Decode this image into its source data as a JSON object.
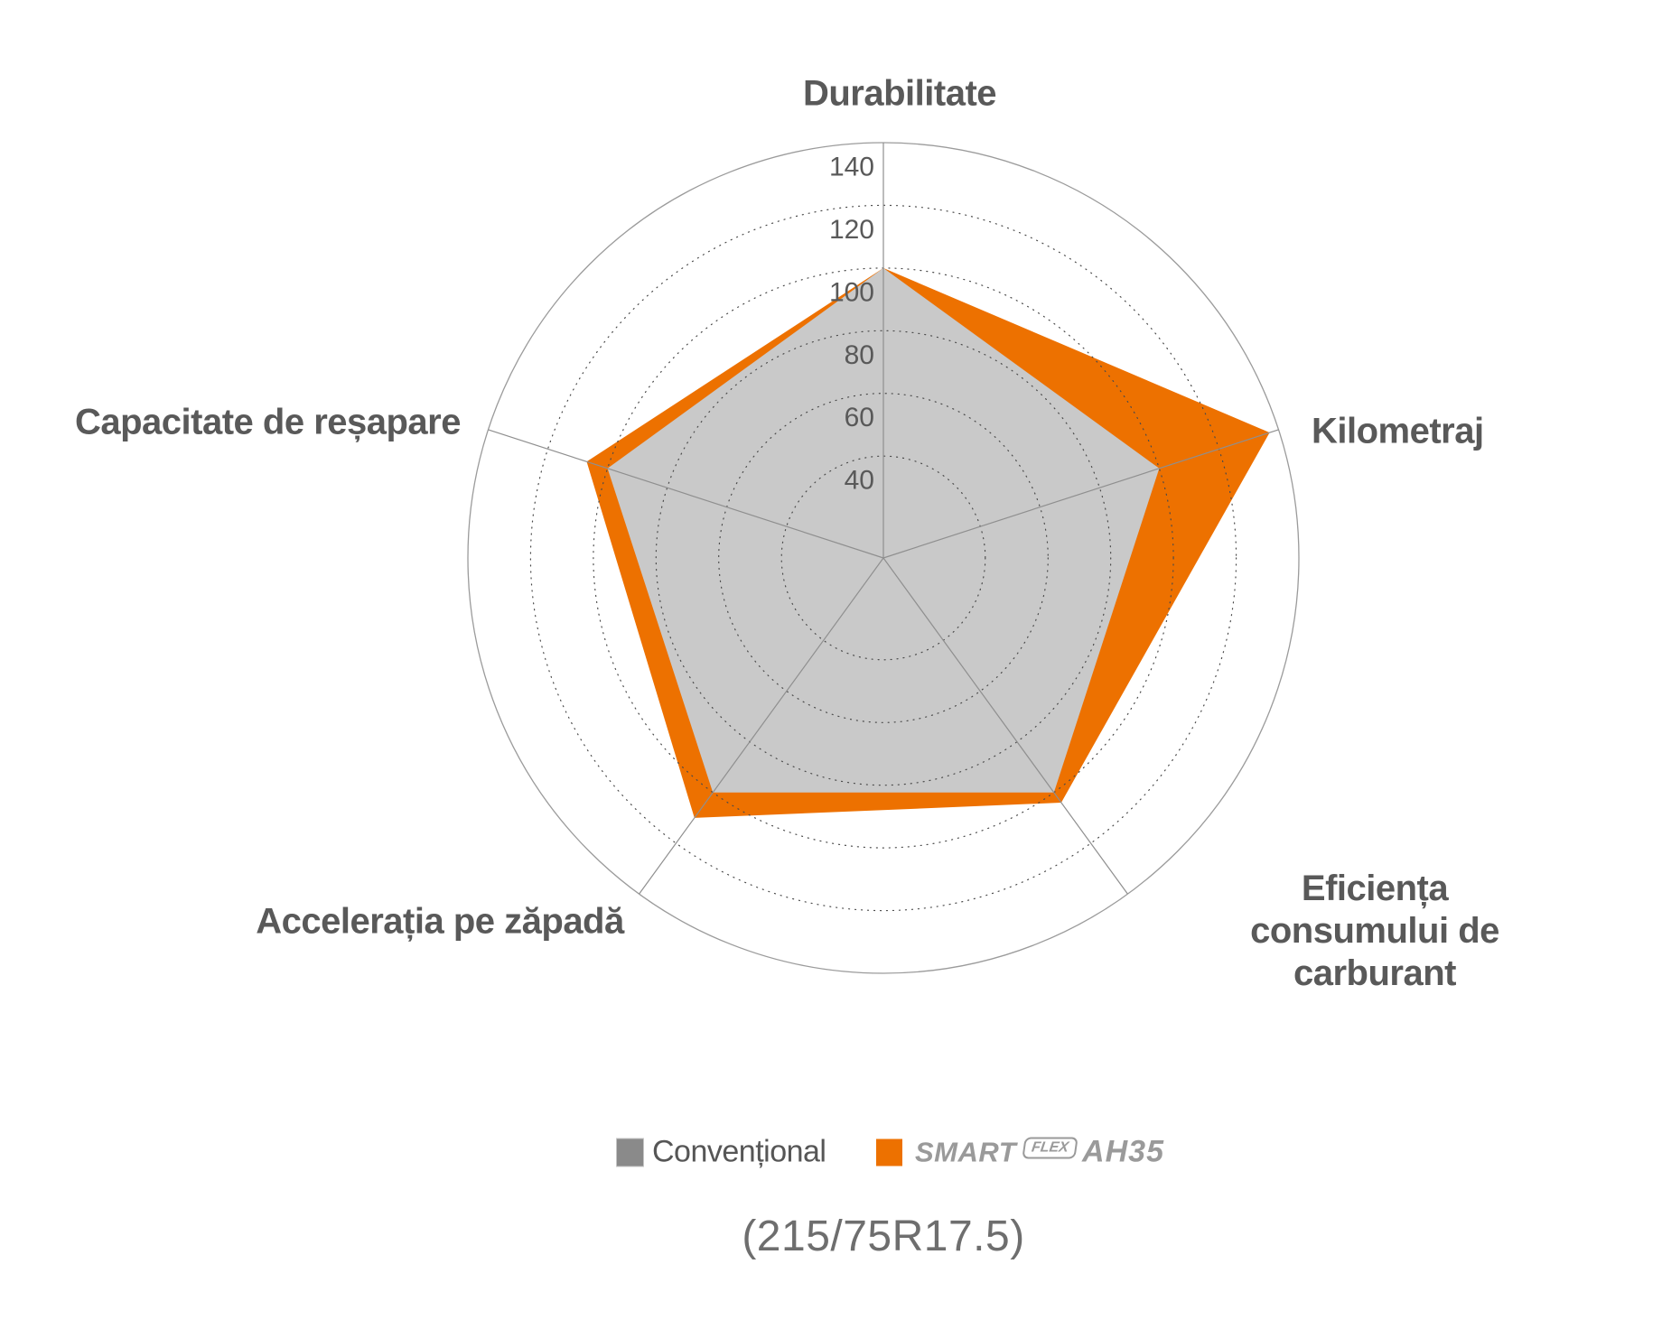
{
  "chart_data": {
    "type": "radar",
    "categories": [
      "Durabilitate",
      "Kilometraj",
      "Eficiența consumului de carburant",
      "Accelerația pe zăpadă",
      "Capacitate de reșapare"
    ],
    "axis_label_display": [
      "Durabilitate",
      "Kilometraj",
      "Eficiența consumului de\ncarburant",
      "Accelerația pe zăpadă",
      "Capacitate de reșapare"
    ],
    "series": [
      {
        "name": "Convențional",
        "values": [
          100,
          100,
          100,
          100,
          100
        ],
        "fill": "#C9C9C9",
        "legend_color": "#8A8A8A"
      },
      {
        "name": "SmartFlex AH35",
        "values": [
          100,
          137,
          104,
          110,
          107
        ],
        "fill": "#ED7100",
        "legend_color": "#ED7100"
      }
    ],
    "r_axis": {
      "ticks": [
        40,
        60,
        80,
        100,
        120,
        140
      ],
      "rlim": [
        7.5,
        140
      ]
    },
    "grid": {
      "inner_rings": "dotted",
      "outer_ring": "solid"
    },
    "legend_position": "bottom"
  },
  "legend": {
    "conventional_label": "Convențional",
    "smartflex": {
      "brand": "Smart",
      "flex": "Flex",
      "model": "AH35"
    }
  },
  "caption": "(215/75R17.5)",
  "colors": {
    "orange": "#ED7100",
    "gray_fill": "#C9C9C9",
    "legend_gray": "#8A8A8A",
    "label_text": "#595959",
    "tick_text": "#595959",
    "grid_dots": "#4A4A4A",
    "grid_solid": "#9B9B9B",
    "axis_line": "#8F8F8F",
    "logo_gray": "#9A9A9A",
    "caption_text": "#6E6E6E"
  }
}
